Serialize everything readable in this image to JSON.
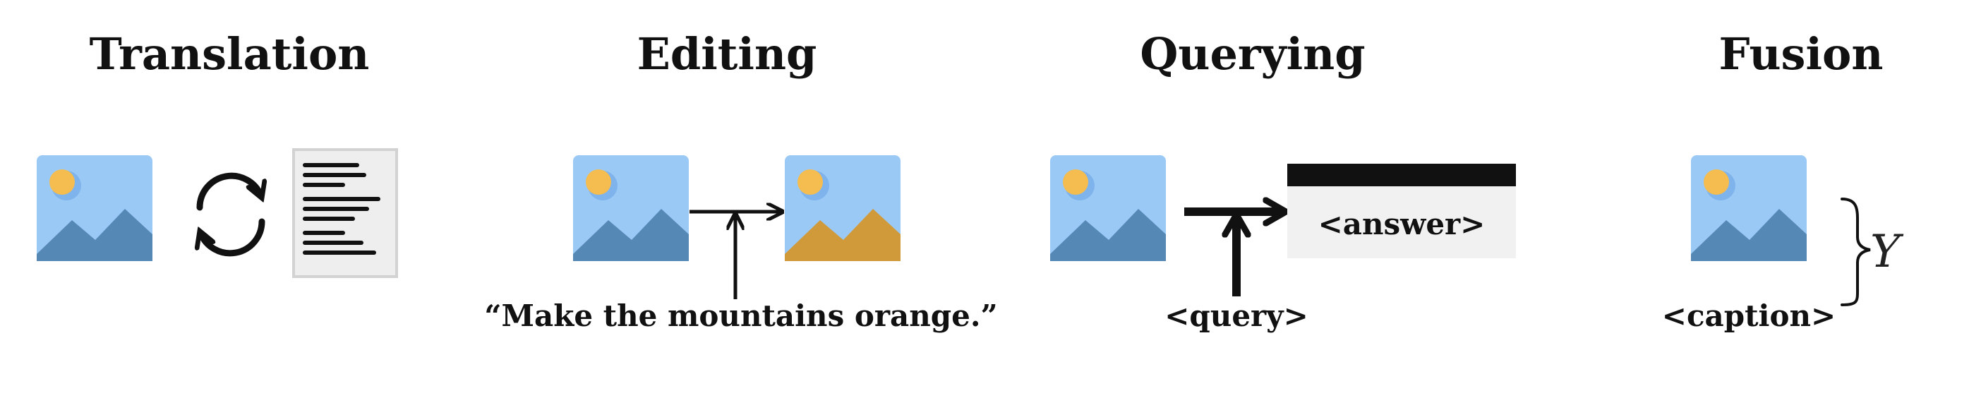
{
  "panels": [
    {
      "title": "Translation"
    },
    {
      "title": "Editing",
      "instruction": "“Make the mountains orange.”"
    },
    {
      "title": "Querying",
      "query": "<query>",
      "answer": "<answer>"
    },
    {
      "title": "Fusion",
      "caption": "<caption>",
      "symbol": "Y"
    }
  ],
  "colors": {
    "sky": "#9ac9f6",
    "sun": "#f5bd4f",
    "sun_halo": "#7fb3eb",
    "mountain": "#5688b6",
    "mountain_orange": "#d09a3a",
    "ink": "#111111",
    "doc_bg": "#eeeeee",
    "answer_bg": "#f1f1f1"
  },
  "icons": {
    "image": "image-icon",
    "cycle": "cycle-arrows-icon",
    "document": "document-icon",
    "brace": "brace-icon"
  }
}
